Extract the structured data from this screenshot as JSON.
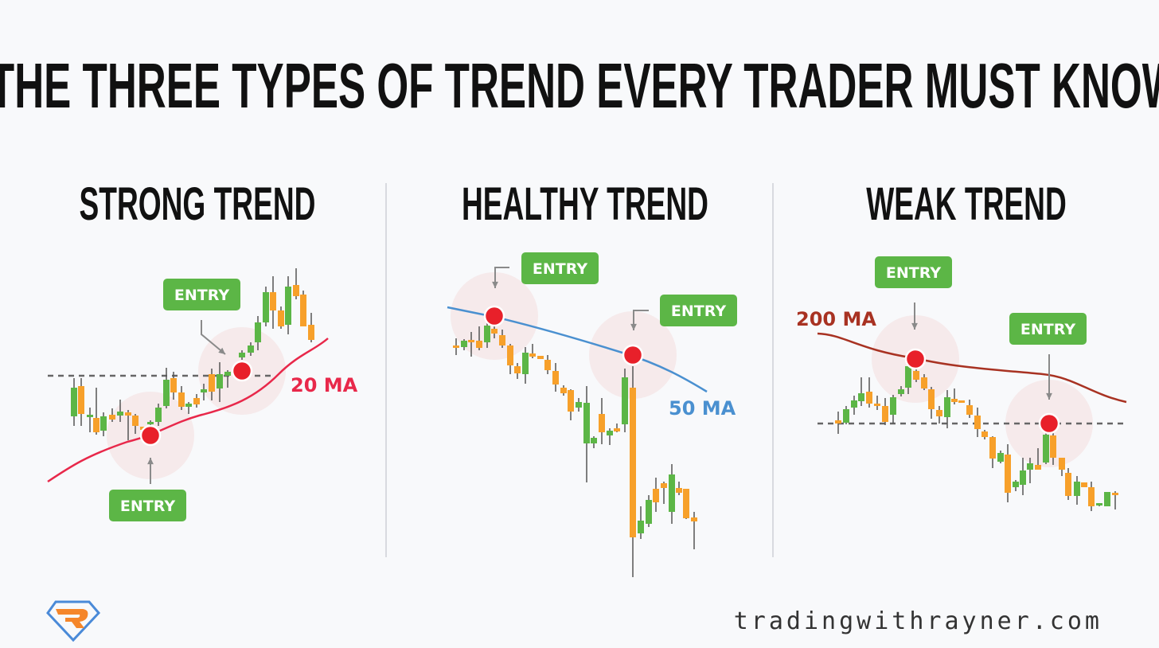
{
  "title": "THE THREE TYPES OF TREND EVERY TRADER MUST KNOW",
  "panels": [
    {
      "heading": "STRONG TREND",
      "ma_label": "20 MA",
      "ma_color": "#e8284a",
      "entry_labels": [
        "ENTRY",
        "ENTRY"
      ]
    },
    {
      "heading": "HEALTHY TREND",
      "ma_label": "50 MA",
      "ma_color": "#4a90d0",
      "entry_labels": [
        "ENTRY",
        "ENTRY"
      ]
    },
    {
      "heading": "WEAK TREND",
      "ma_label": "200 MA",
      "ma_color": "#a83222",
      "entry_labels": [
        "ENTRY",
        "ENTRY"
      ]
    }
  ],
  "colors": {
    "bullish": "#5cb646",
    "bearish": "#f7a02a",
    "entry_badge": "#5cb646",
    "entry_dot": "#e8202a"
  },
  "footer": {
    "logo": "R",
    "website": "tradingwithrayner.com"
  }
}
